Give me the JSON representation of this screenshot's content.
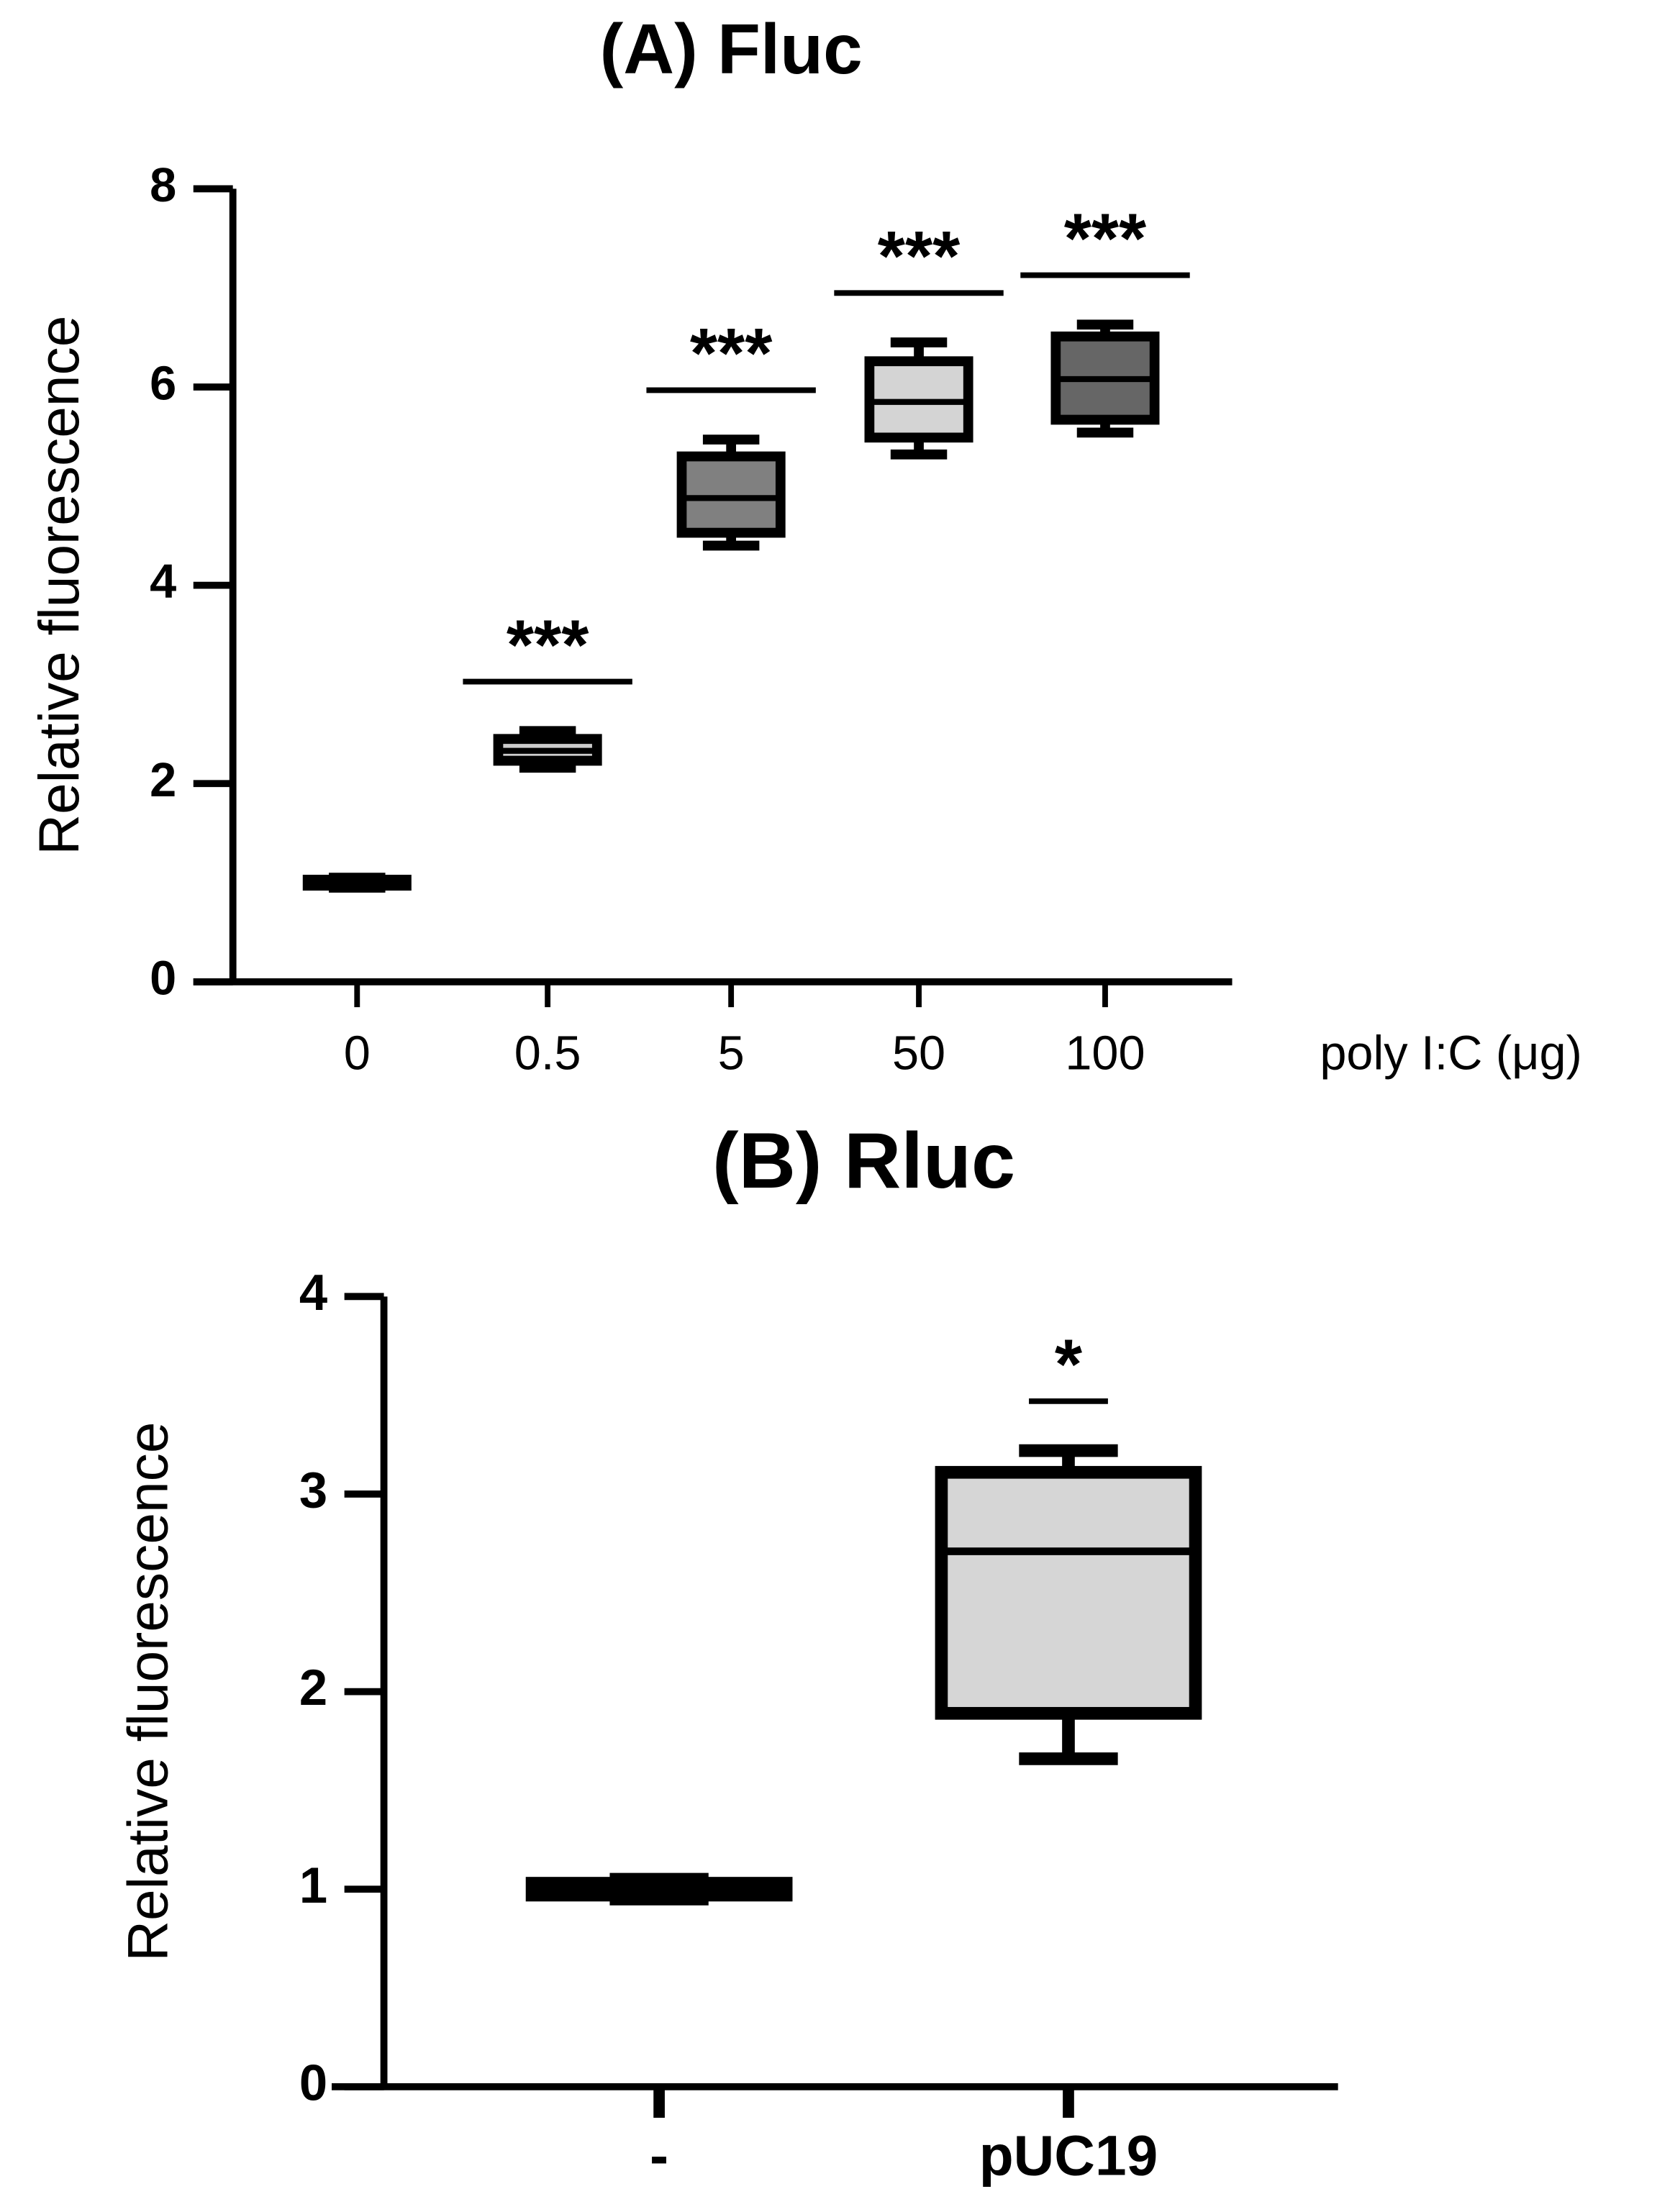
{
  "chart_data": [
    {
      "type": "box",
      "title": "(A) Fluc",
      "ylabel": "Relative fluorescence",
      "xlabel": "poly I:C (μg)",
      "categories": [
        "0",
        "0.5",
        "5",
        "50",
        "100"
      ],
      "boxes": [
        {
          "min": 0.95,
          "q1": 0.97,
          "median": 1.0,
          "q3": 1.03,
          "max": 1.05,
          "color": "#000000"
        },
        {
          "min": 2.16,
          "q1": 2.23,
          "median": 2.33,
          "q3": 2.45,
          "max": 2.53,
          "color": "#cccccc"
        },
        {
          "min": 4.4,
          "q1": 4.53,
          "median": 4.88,
          "q3": 5.3,
          "max": 5.47,
          "color": "#808080"
        },
        {
          "min": 5.32,
          "q1": 5.49,
          "median": 5.85,
          "q3": 6.26,
          "max": 6.45,
          "color": "#d4d4d4"
        },
        {
          "min": 5.54,
          "q1": 5.67,
          "median": 6.08,
          "q3": 6.51,
          "max": 6.63,
          "color": "#666666"
        }
      ],
      "significance": [
        null,
        "***",
        "***",
        "***",
        "***"
      ],
      "ylim": [
        0,
        8
      ],
      "yticks": [
        0,
        2,
        4,
        6,
        8
      ]
    },
    {
      "type": "box",
      "title": "(B) Rluc",
      "ylabel": "Relative fluorescence",
      "categories": [
        "-",
        "pUC19"
      ],
      "boxes": [
        {
          "min": 0.95,
          "q1": 0.97,
          "median": 1.0,
          "q3": 1.03,
          "max": 1.05,
          "color": "#000000"
        },
        {
          "min": 1.66,
          "q1": 1.89,
          "median": 2.71,
          "q3": 3.11,
          "max": 3.22,
          "color": "#d6d6d6"
        }
      ],
      "significance": [
        null,
        "*"
      ],
      "ylim": [
        0,
        4
      ],
      "yticks": [
        0,
        1,
        2,
        3,
        4
      ]
    }
  ]
}
